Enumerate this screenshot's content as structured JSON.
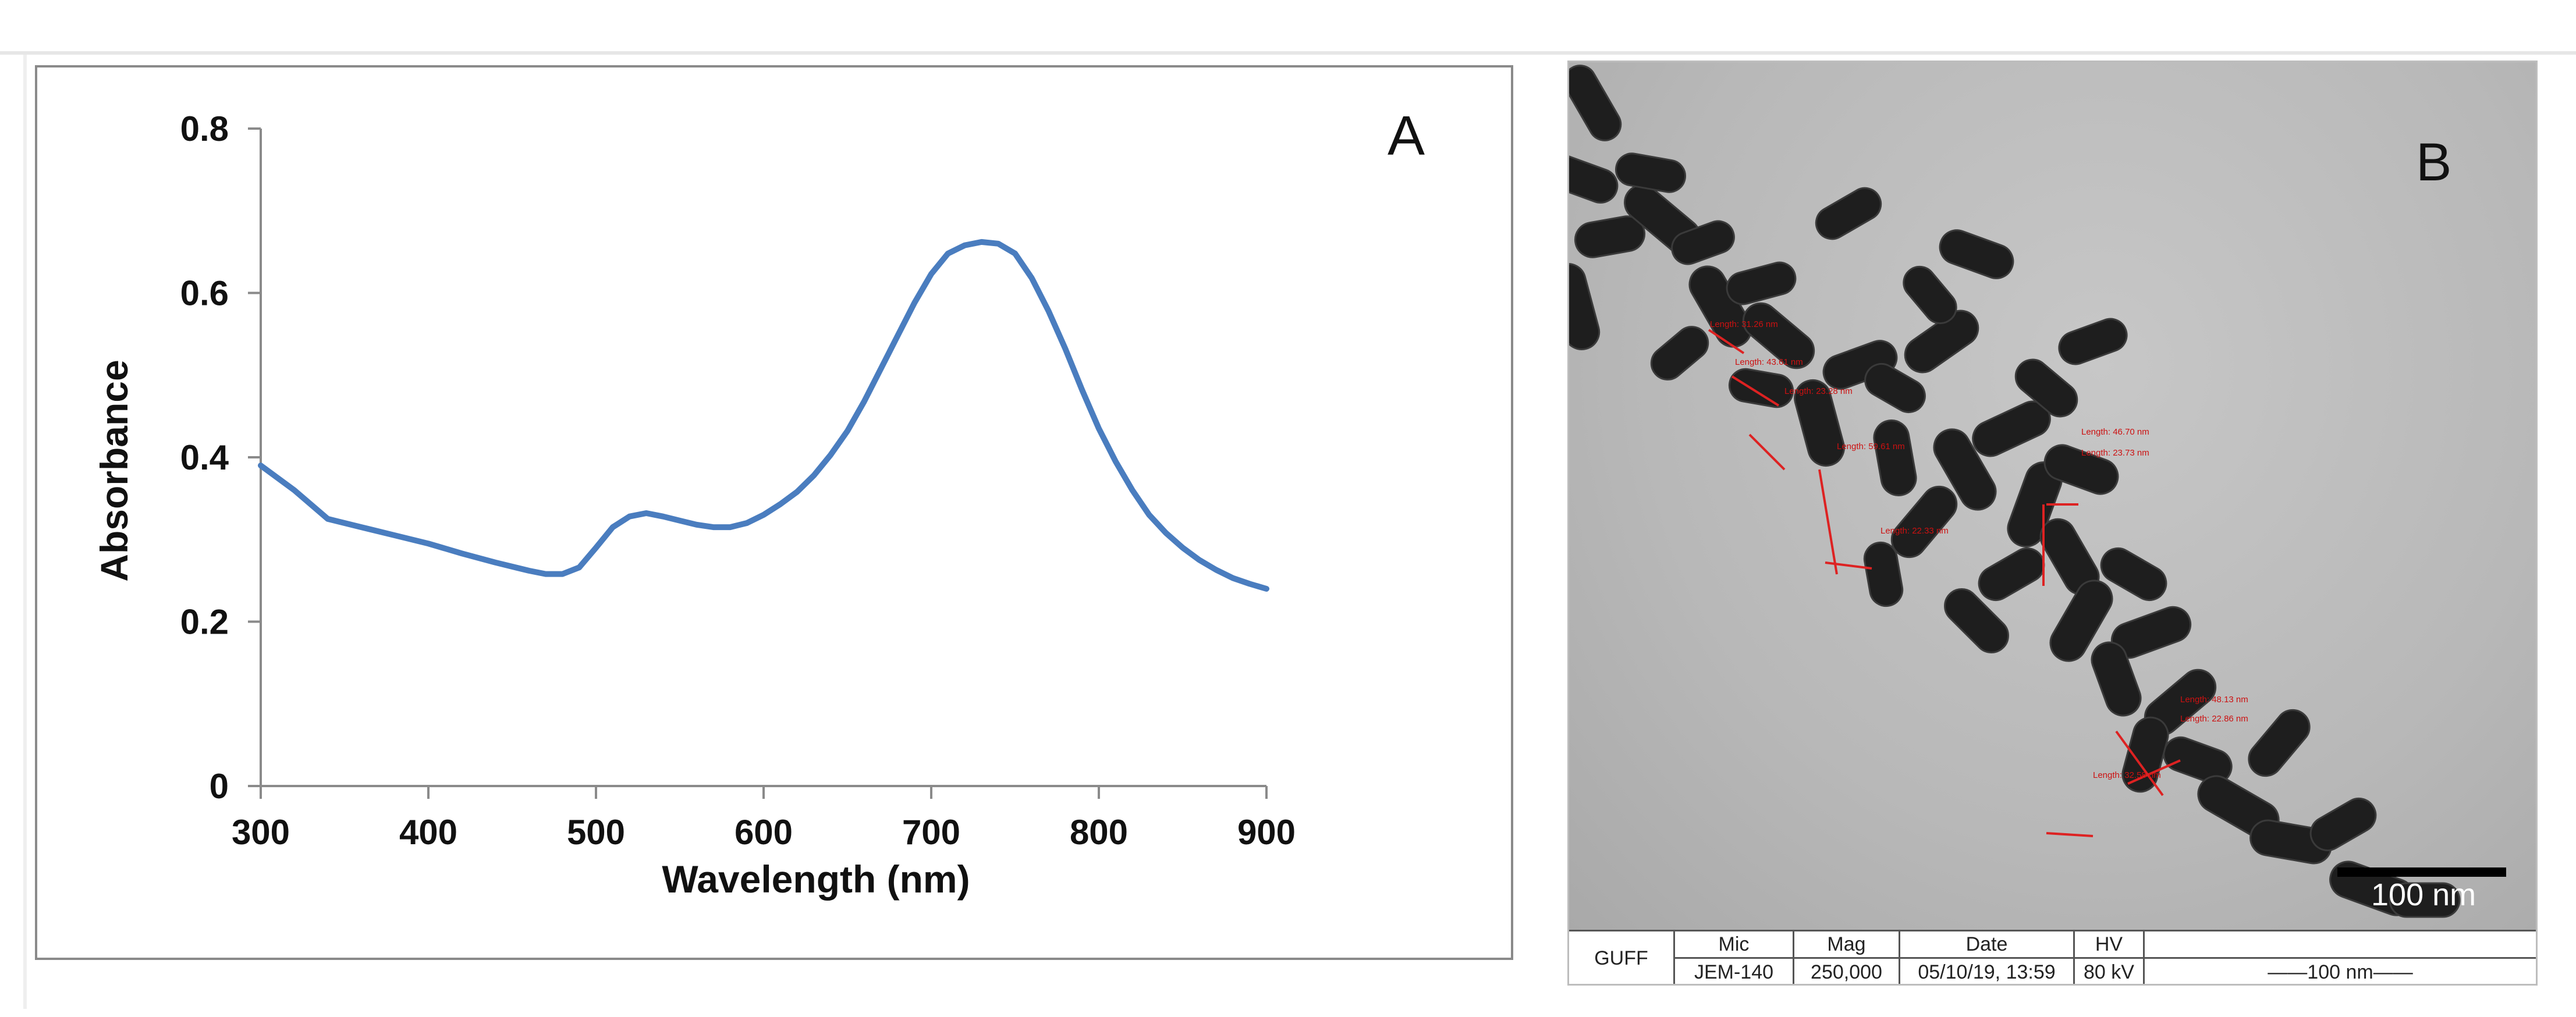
{
  "panel_a": {
    "label": "A",
    "chart_data": {
      "type": "line",
      "title": "",
      "xlabel": "Wavelength (nm)",
      "ylabel": "Absorbance",
      "xlim": [
        300,
        900
      ],
      "ylim": [
        0,
        0.8
      ],
      "xticks": [
        "300",
        "400",
        "500",
        "600",
        "700",
        "800",
        "900"
      ],
      "yticks": [
        "0",
        "0.2",
        "0.4",
        "0.6",
        "0.8"
      ],
      "grid": false,
      "series": [
        {
          "color": "#4a7dbf",
          "x": [
            300,
            320,
            340,
            360,
            380,
            400,
            420,
            440,
            460,
            470,
            480,
            490,
            500,
            510,
            520,
            530,
            540,
            550,
            560,
            570,
            580,
            590,
            600,
            610,
            620,
            630,
            640,
            650,
            660,
            670,
            680,
            690,
            700,
            710,
            720,
            730,
            740,
            750,
            760,
            770,
            780,
            790,
            800,
            810,
            820,
            830,
            840,
            850,
            860,
            870,
            880,
            890,
            900
          ],
          "y": [
            0.39,
            0.36,
            0.325,
            0.315,
            0.305,
            0.295,
            0.283,
            0.272,
            0.262,
            0.258,
            0.258,
            0.266,
            0.29,
            0.315,
            0.328,
            0.332,
            0.328,
            0.323,
            0.318,
            0.315,
            0.315,
            0.32,
            0.33,
            0.343,
            0.358,
            0.378,
            0.403,
            0.432,
            0.468,
            0.508,
            0.548,
            0.588,
            0.623,
            0.648,
            0.658,
            0.662,
            0.66,
            0.648,
            0.618,
            0.578,
            0.532,
            0.482,
            0.435,
            0.395,
            0.36,
            0.33,
            0.308,
            0.29,
            0.275,
            0.263,
            0.253,
            0.246,
            0.24
          ]
        }
      ]
    }
  },
  "panel_b": {
    "label": "B",
    "scale_bar_label": "100 nm",
    "measurements": [
      "Length: 31.26 nm",
      "Length: 43.61 nm",
      "Length: 23.28 nm",
      "Length: 59.61 nm",
      "Length: 22.33 nm",
      "Length: 46.70 nm",
      "Length: 23.73 nm",
      "Length: 48.13 nm",
      "Length: 22.86 nm",
      "Length: 32.58 nm"
    ],
    "info_bar": {
      "site": "GUFF",
      "mic_label": "Mic",
      "mic_value": "JEM-140",
      "mag_label": "Mag",
      "mag_value": "250,000",
      "date_label": "Date",
      "date_value": "05/10/19, 13:59",
      "hv_label": "HV",
      "hv_value": "80 kV",
      "scale_value": "——100 nm——"
    }
  }
}
